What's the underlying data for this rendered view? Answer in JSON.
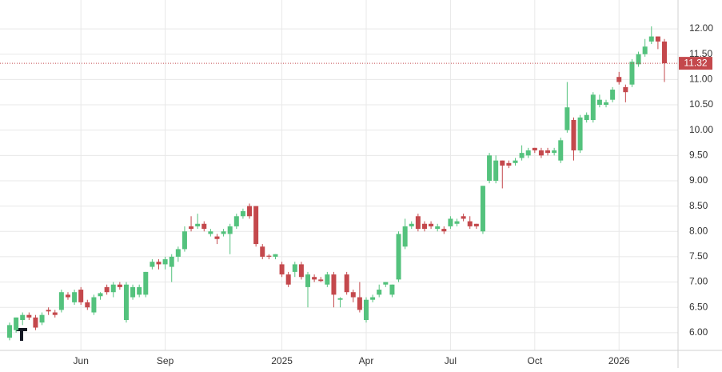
{
  "chart_data": {
    "type": "candlestick",
    "categories": [
      null,
      null,
      null,
      null,
      null,
      null,
      null,
      null,
      null,
      null,
      null,
      "Jun",
      null,
      null,
      null,
      null,
      null,
      null,
      null,
      null,
      null,
      null,
      null,
      null,
      "Sep",
      null,
      null,
      null,
      null,
      null,
      null,
      null,
      null,
      null,
      null,
      null,
      null,
      null,
      null,
      null,
      null,
      null,
      "2025",
      null,
      null,
      null,
      null,
      null,
      null,
      null,
      null,
      null,
      null,
      null,
      null,
      "Apr",
      null,
      null,
      null,
      null,
      null,
      null,
      null,
      null,
      null,
      null,
      null,
      null,
      "Jul",
      null,
      null,
      null,
      null,
      null,
      null,
      null,
      null,
      null,
      null,
      null,
      null,
      "Oct",
      null,
      null,
      null,
      null,
      null,
      null,
      null,
      null,
      null,
      null,
      null,
      null,
      "2026",
      null,
      null,
      null,
      null,
      null,
      null,
      null
    ],
    "open": [
      5.9,
      6.05,
      6.25,
      6.35,
      6.3,
      6.2,
      6.45,
      6.4,
      6.45,
      6.75,
      6.6,
      6.85,
      6.6,
      6.4,
      6.72,
      6.9,
      6.8,
      6.95,
      6.25,
      6.7,
      6.75,
      6.75,
      7.3,
      7.4,
      7.35,
      7.3,
      7.5,
      7.65,
      8.1,
      8.1,
      8.15,
      7.95,
      7.9,
      7.95,
      7.95,
      8.1,
      8.3,
      8.5,
      8.5,
      7.7,
      7.52,
      7.5,
      7.35,
      7.15,
      7.2,
      7.35,
      6.9,
      7.1,
      7.05,
      6.95,
      7.15,
      6.65,
      7.15,
      6.8,
      6.7,
      6.25,
      6.65,
      6.75,
      6.95,
      6.75,
      7.05,
      7.7,
      8.1,
      8.3,
      8.15,
      8.15,
      8.05,
      8.05,
      8.1,
      8.15,
      8.3,
      8.2,
      8.15,
      8.0,
      9.0,
      9.0,
      9.4,
      9.35,
      9.35,
      9.45,
      9.5,
      9.65,
      9.6,
      9.6,
      9.55,
      9.4,
      10.0,
      10.2,
      9.6,
      10.2,
      10.2,
      10.5,
      10.5,
      10.6,
      11.05,
      10.85,
      10.9,
      11.3,
      11.5,
      11.75,
      11.85,
      11.75
    ],
    "high": [
      6.2,
      6.3,
      6.4,
      6.4,
      6.35,
      6.4,
      6.5,
      6.45,
      6.85,
      6.8,
      6.85,
      6.9,
      6.65,
      6.75,
      6.8,
      6.95,
      7.0,
      7.0,
      7.0,
      6.95,
      6.95,
      7.2,
      7.45,
      7.45,
      7.5,
      7.55,
      7.7,
      8.1,
      8.3,
      8.35,
      8.2,
      8.05,
      7.95,
      8.05,
      8.15,
      8.35,
      8.45,
      8.55,
      8.5,
      7.75,
      7.55,
      7.55,
      7.4,
      7.2,
      7.4,
      7.4,
      7.2,
      7.15,
      7.1,
      7.2,
      7.2,
      6.7,
      7.2,
      6.85,
      7.0,
      6.7,
      6.75,
      6.95,
      7.0,
      6.95,
      8.0,
      8.25,
      8.2,
      8.35,
      8.2,
      8.2,
      8.15,
      8.1,
      8.3,
      8.25,
      8.35,
      8.3,
      8.15,
      8.9,
      9.55,
      9.5,
      9.4,
      9.4,
      9.45,
      9.7,
      9.65,
      9.65,
      9.65,
      9.65,
      9.65,
      9.85,
      10.95,
      10.25,
      10.3,
      10.35,
      10.75,
      10.7,
      10.6,
      10.85,
      11.15,
      10.9,
      11.4,
      11.55,
      11.8,
      12.05,
      11.85,
      11.8
    ],
    "low": [
      5.85,
      6.0,
      6.15,
      6.25,
      6.05,
      6.15,
      6.35,
      6.3,
      6.4,
      6.65,
      6.55,
      6.55,
      6.45,
      6.35,
      6.65,
      6.75,
      6.7,
      6.85,
      6.2,
      6.65,
      6.7,
      6.7,
      7.25,
      7.25,
      7.25,
      7.0,
      7.4,
      7.6,
      8.0,
      8.05,
      8.0,
      7.9,
      7.75,
      7.9,
      7.55,
      8.05,
      8.25,
      8.25,
      7.7,
      7.45,
      7.45,
      7.45,
      7.1,
      6.9,
      7.1,
      7.05,
      6.5,
      7.0,
      7.0,
      6.9,
      6.5,
      6.5,
      6.75,
      6.6,
      6.4,
      6.2,
      6.6,
      6.7,
      6.9,
      6.7,
      7.0,
      7.65,
      8.05,
      8.0,
      8.0,
      8.05,
      8.0,
      7.95,
      8.05,
      8.1,
      8.2,
      8.05,
      8.05,
      7.95,
      8.95,
      8.95,
      8.85,
      9.25,
      9.3,
      9.4,
      9.45,
      9.55,
      9.45,
      9.5,
      9.5,
      9.35,
      9.95,
      9.4,
      9.55,
      10.15,
      10.15,
      10.45,
      10.45,
      10.55,
      10.9,
      10.55,
      10.85,
      11.25,
      11.45,
      11.7,
      11.6,
      10.95
    ],
    "close": [
      6.15,
      6.3,
      6.35,
      6.3,
      6.1,
      6.35,
      6.42,
      6.35,
      6.8,
      6.7,
      6.8,
      6.6,
      6.5,
      6.7,
      6.78,
      6.8,
      6.95,
      6.9,
      6.95,
      6.9,
      6.9,
      7.2,
      7.4,
      7.35,
      7.45,
      7.5,
      7.65,
      8.0,
      8.05,
      8.15,
      8.05,
      8.0,
      7.85,
      8.0,
      8.1,
      8.3,
      8.4,
      8.3,
      7.75,
      7.5,
      7.5,
      7.55,
      7.15,
      6.95,
      7.35,
      7.1,
      7.15,
      7.05,
      7.02,
      7.15,
      6.75,
      6.68,
      6.8,
      6.7,
      6.45,
      6.65,
      6.7,
      6.85,
      7.0,
      6.95,
      7.95,
      8.1,
      8.15,
      8.05,
      8.05,
      8.1,
      8.1,
      8.0,
      8.25,
      8.2,
      8.25,
      8.1,
      8.1,
      8.9,
      9.5,
      9.4,
      9.3,
      9.3,
      9.4,
      9.55,
      9.6,
      9.6,
      9.5,
      9.55,
      9.6,
      9.8,
      10.45,
      9.6,
      10.25,
      10.3,
      10.7,
      10.6,
      10.55,
      10.8,
      10.95,
      10.75,
      11.35,
      11.5,
      11.65,
      11.85,
      11.75,
      11.32
    ],
    "up_color": "#54c27d",
    "down_color": "#c4484c",
    "price_line": 11.32,
    "ylim": [
      5.65,
      12.57
    ],
    "yticks": [
      {
        "value": 6,
        "label": "6.00"
      },
      {
        "value": 6.5,
        "label": "6.50"
      },
      {
        "value": 7,
        "label": "7.00"
      },
      {
        "value": 7.5,
        "label": "7.50"
      },
      {
        "value": 8,
        "label": "8.00"
      },
      {
        "value": 8.5,
        "label": "8.50"
      },
      {
        "value": 9,
        "label": "9.00"
      },
      {
        "value": 9.5,
        "label": "9.50"
      },
      {
        "value": 10,
        "label": "10.00"
      },
      {
        "value": 10.5,
        "label": "10.50"
      },
      {
        "value": 11,
        "label": "11.00"
      },
      {
        "value": 11.5,
        "label": "11.50"
      },
      {
        "value": 12,
        "label": "12.00"
      }
    ],
    "grid": true
  }
}
